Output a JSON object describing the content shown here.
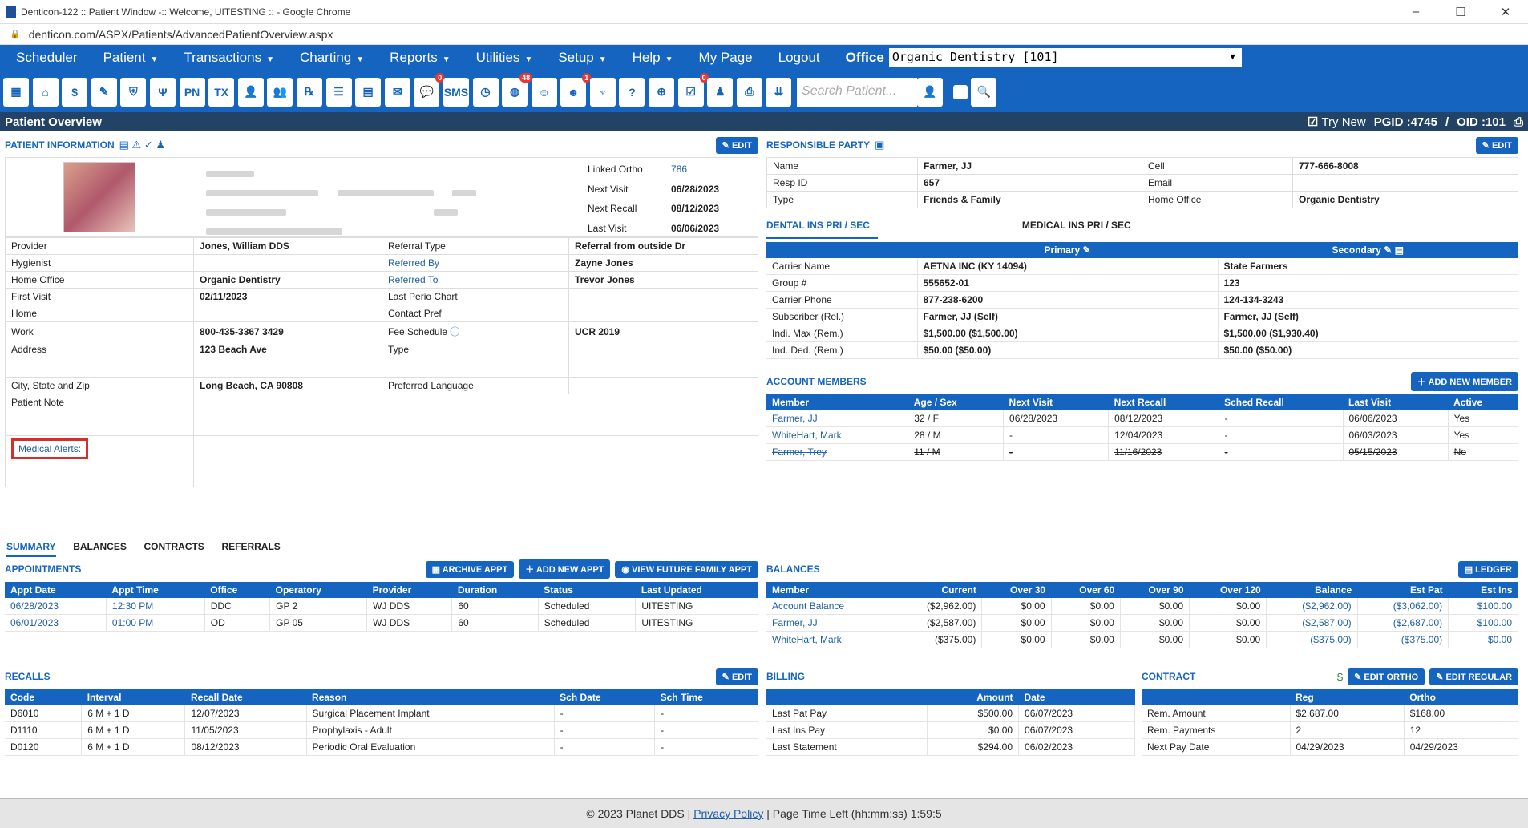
{
  "window": {
    "title": "Denticon-122 :: Patient Window -:: Welcome, UITESTING :: - Google Chrome",
    "url": "denticon.com/ASPX/Patients/AdvancedPatientOverview.aspx"
  },
  "menu": {
    "items": [
      "Scheduler",
      "Patient",
      "Transactions",
      "Charting",
      "Reports",
      "Utilities",
      "Setup",
      "Help",
      "My Page",
      "Logout"
    ],
    "office_label": "Office",
    "office_value": "Organic Dentistry [101]"
  },
  "toolbar": {
    "search_placeholder": "Search Patient...",
    "badges": {
      "sms": "0",
      "globe": "48",
      "user": "1",
      "doc": "0"
    }
  },
  "page": {
    "title": "Patient Overview",
    "try_new": "Try New",
    "pgid": "PGID :4745",
    "oid": "OID :101"
  },
  "patient_info": {
    "title": "PATIENT INFORMATION",
    "edit": "EDIT",
    "right_labels": [
      [
        "Linked Ortho",
        "786"
      ],
      [
        "Next Visit",
        "06/28/2023"
      ],
      [
        "Next Recall",
        "08/12/2023"
      ],
      [
        "Last Visit",
        "06/06/2023"
      ]
    ],
    "rows": [
      [
        "Provider",
        "Jones, William DDS",
        "Referral Type",
        "Referral from outside Dr"
      ],
      [
        "Hygienist",
        "",
        "Referred By",
        "Zayne Jones"
      ],
      [
        "Home Office",
        "Organic Dentistry",
        "Referred To",
        "Trevor Jones"
      ],
      [
        "First Visit",
        "02/11/2023",
        "Last Perio Chart",
        ""
      ],
      [
        "Home",
        "",
        "Contact Pref",
        ""
      ],
      [
        "Work",
        "800-435-3367 3429",
        "Fee Schedule",
        "UCR 2019"
      ],
      [
        "Address",
        "123 Beach Ave",
        "Type",
        ""
      ],
      [
        "City, State and Zip",
        "Long Beach, CA 90808",
        "Preferred Language",
        ""
      ]
    ],
    "patient_note": "Patient Note",
    "medical_alerts": "Medical Alerts:"
  },
  "responsible_party": {
    "title": "RESPONSIBLE PARTY",
    "edit": "EDIT",
    "rows": [
      [
        "Name",
        "Farmer, JJ",
        "Cell",
        "777-666-8008"
      ],
      [
        "Resp ID",
        "657",
        "Email",
        ""
      ],
      [
        "Type",
        "Friends & Family",
        "Home Office",
        "Organic Dentistry"
      ]
    ]
  },
  "insurance": {
    "tab_dental": "DENTAL INS PRI / SEC",
    "tab_medical": "MEDICAL INS PRI / SEC",
    "primary": "Primary",
    "secondary": "Secondary",
    "rows": [
      [
        "Carrier Name",
        "AETNA INC (KY 14094)",
        "State Farmers"
      ],
      [
        "Group #",
        "555652-01",
        "123"
      ],
      [
        "Carrier Phone",
        "877-238-6200",
        "124-134-3243"
      ],
      [
        "Subscriber (Rel.)",
        "Farmer, JJ (Self)",
        "Farmer, JJ (Self)"
      ],
      [
        "Indi. Max (Rem.)",
        "$1,500.00 ($1,500.00)",
        "$1,500.00 ($1,930.40)"
      ],
      [
        "Ind. Ded. (Rem.)",
        "$50.00 ($50.00)",
        "$50.00 ($50.00)"
      ]
    ]
  },
  "account_members": {
    "title": "ACCOUNT MEMBERS",
    "add": "ADD NEW MEMBER",
    "headers": [
      "Member",
      "Age / Sex",
      "Next Visit",
      "Next Recall",
      "Sched Recall",
      "Last Visit",
      "Active"
    ],
    "rows": [
      [
        "Farmer, JJ",
        "32 / F",
        "06/28/2023",
        "08/12/2023",
        "-",
        "06/06/2023",
        "Yes"
      ],
      [
        "WhiteHart, Mark",
        "28 / M",
        "-",
        "12/04/2023",
        "-",
        "06/03/2023",
        "Yes"
      ],
      [
        "Farmer, Trey",
        "11 / M",
        "-",
        "11/16/2023",
        "-",
        "05/15/2023",
        "No"
      ]
    ]
  },
  "tabs": [
    "SUMMARY",
    "BALANCES",
    "CONTRACTS",
    "REFERRALS"
  ],
  "appointments": {
    "title": "APPOINTMENTS",
    "btn_archive": "ARCHIVE APPT",
    "btn_add": "ADD NEW APPT",
    "btn_future": "VIEW FUTURE FAMILY APPT",
    "headers": [
      "Appt Date",
      "Appt Time",
      "Office",
      "Operatory",
      "Provider",
      "Duration",
      "Status",
      "Last Updated"
    ],
    "rows": [
      [
        "06/28/2023",
        "12:30 PM",
        "DDC",
        "GP 2",
        "WJ DDS",
        "60",
        "Scheduled",
        "UITESTING"
      ],
      [
        "06/01/2023",
        "01:00 PM",
        "OD",
        "GP 05",
        "WJ DDS",
        "60",
        "Scheduled",
        "UITESTING"
      ]
    ]
  },
  "balances": {
    "title": "BALANCES",
    "ledger": "LEDGER",
    "headers": [
      "Member",
      "Current",
      "Over 30",
      "Over 60",
      "Over 90",
      "Over 120",
      "Balance",
      "Est Pat",
      "Est Ins"
    ],
    "rows": [
      [
        "Account Balance",
        "($2,962.00)",
        "$0.00",
        "$0.00",
        "$0.00",
        "$0.00",
        "($2,962.00)",
        "($3,062.00)",
        "$100.00"
      ],
      [
        "Farmer, JJ",
        "($2,587.00)",
        "$0.00",
        "$0.00",
        "$0.00",
        "$0.00",
        "($2,587.00)",
        "($2,687.00)",
        "$100.00"
      ],
      [
        "WhiteHart, Mark",
        "($375.00)",
        "$0.00",
        "$0.00",
        "$0.00",
        "$0.00",
        "($375.00)",
        "($375.00)",
        "$0.00"
      ]
    ]
  },
  "recalls": {
    "title": "RECALLS",
    "edit": "EDIT",
    "headers": [
      "Code",
      "Interval",
      "Recall Date",
      "Reason",
      "Sch Date",
      "Sch Time"
    ],
    "rows": [
      [
        "D6010",
        "6 M + 1 D",
        "12/07/2023",
        "Surgical Placement Implant",
        "-",
        "-"
      ],
      [
        "D1110",
        "6 M + 1 D",
        "11/05/2023",
        "Prophylaxis - Adult",
        "-",
        "-"
      ],
      [
        "D0120",
        "6 M + 1 D",
        "08/12/2023",
        "Periodic Oral Evaluation",
        "-",
        "-"
      ]
    ]
  },
  "billing": {
    "title": "BILLING",
    "headers": [
      "",
      "Amount",
      "Date"
    ],
    "rows": [
      [
        "Last Pat Pay",
        "$500.00",
        "06/07/2023"
      ],
      [
        "Last Ins Pay",
        "$0.00",
        "06/07/2023"
      ],
      [
        "Last Statement",
        "$294.00",
        "06/02/2023"
      ]
    ]
  },
  "contract": {
    "title": "CONTRACT",
    "btn_ortho": "EDIT ORTHO",
    "btn_regular": "EDIT REGULAR",
    "headers": [
      "",
      "Reg",
      "Ortho"
    ],
    "rows": [
      [
        "Rem. Amount",
        "$2,687.00",
        "$168.00"
      ],
      [
        "Rem. Payments",
        "2",
        "12"
      ],
      [
        "Next Pay Date",
        "04/29/2023",
        "04/29/2023"
      ]
    ]
  },
  "footer": {
    "copy": "© 2023 Planet DDS |",
    "privacy": "Privacy Policy",
    "time": "| Page Time Left (hh:mm:ss) 1:59:5"
  }
}
